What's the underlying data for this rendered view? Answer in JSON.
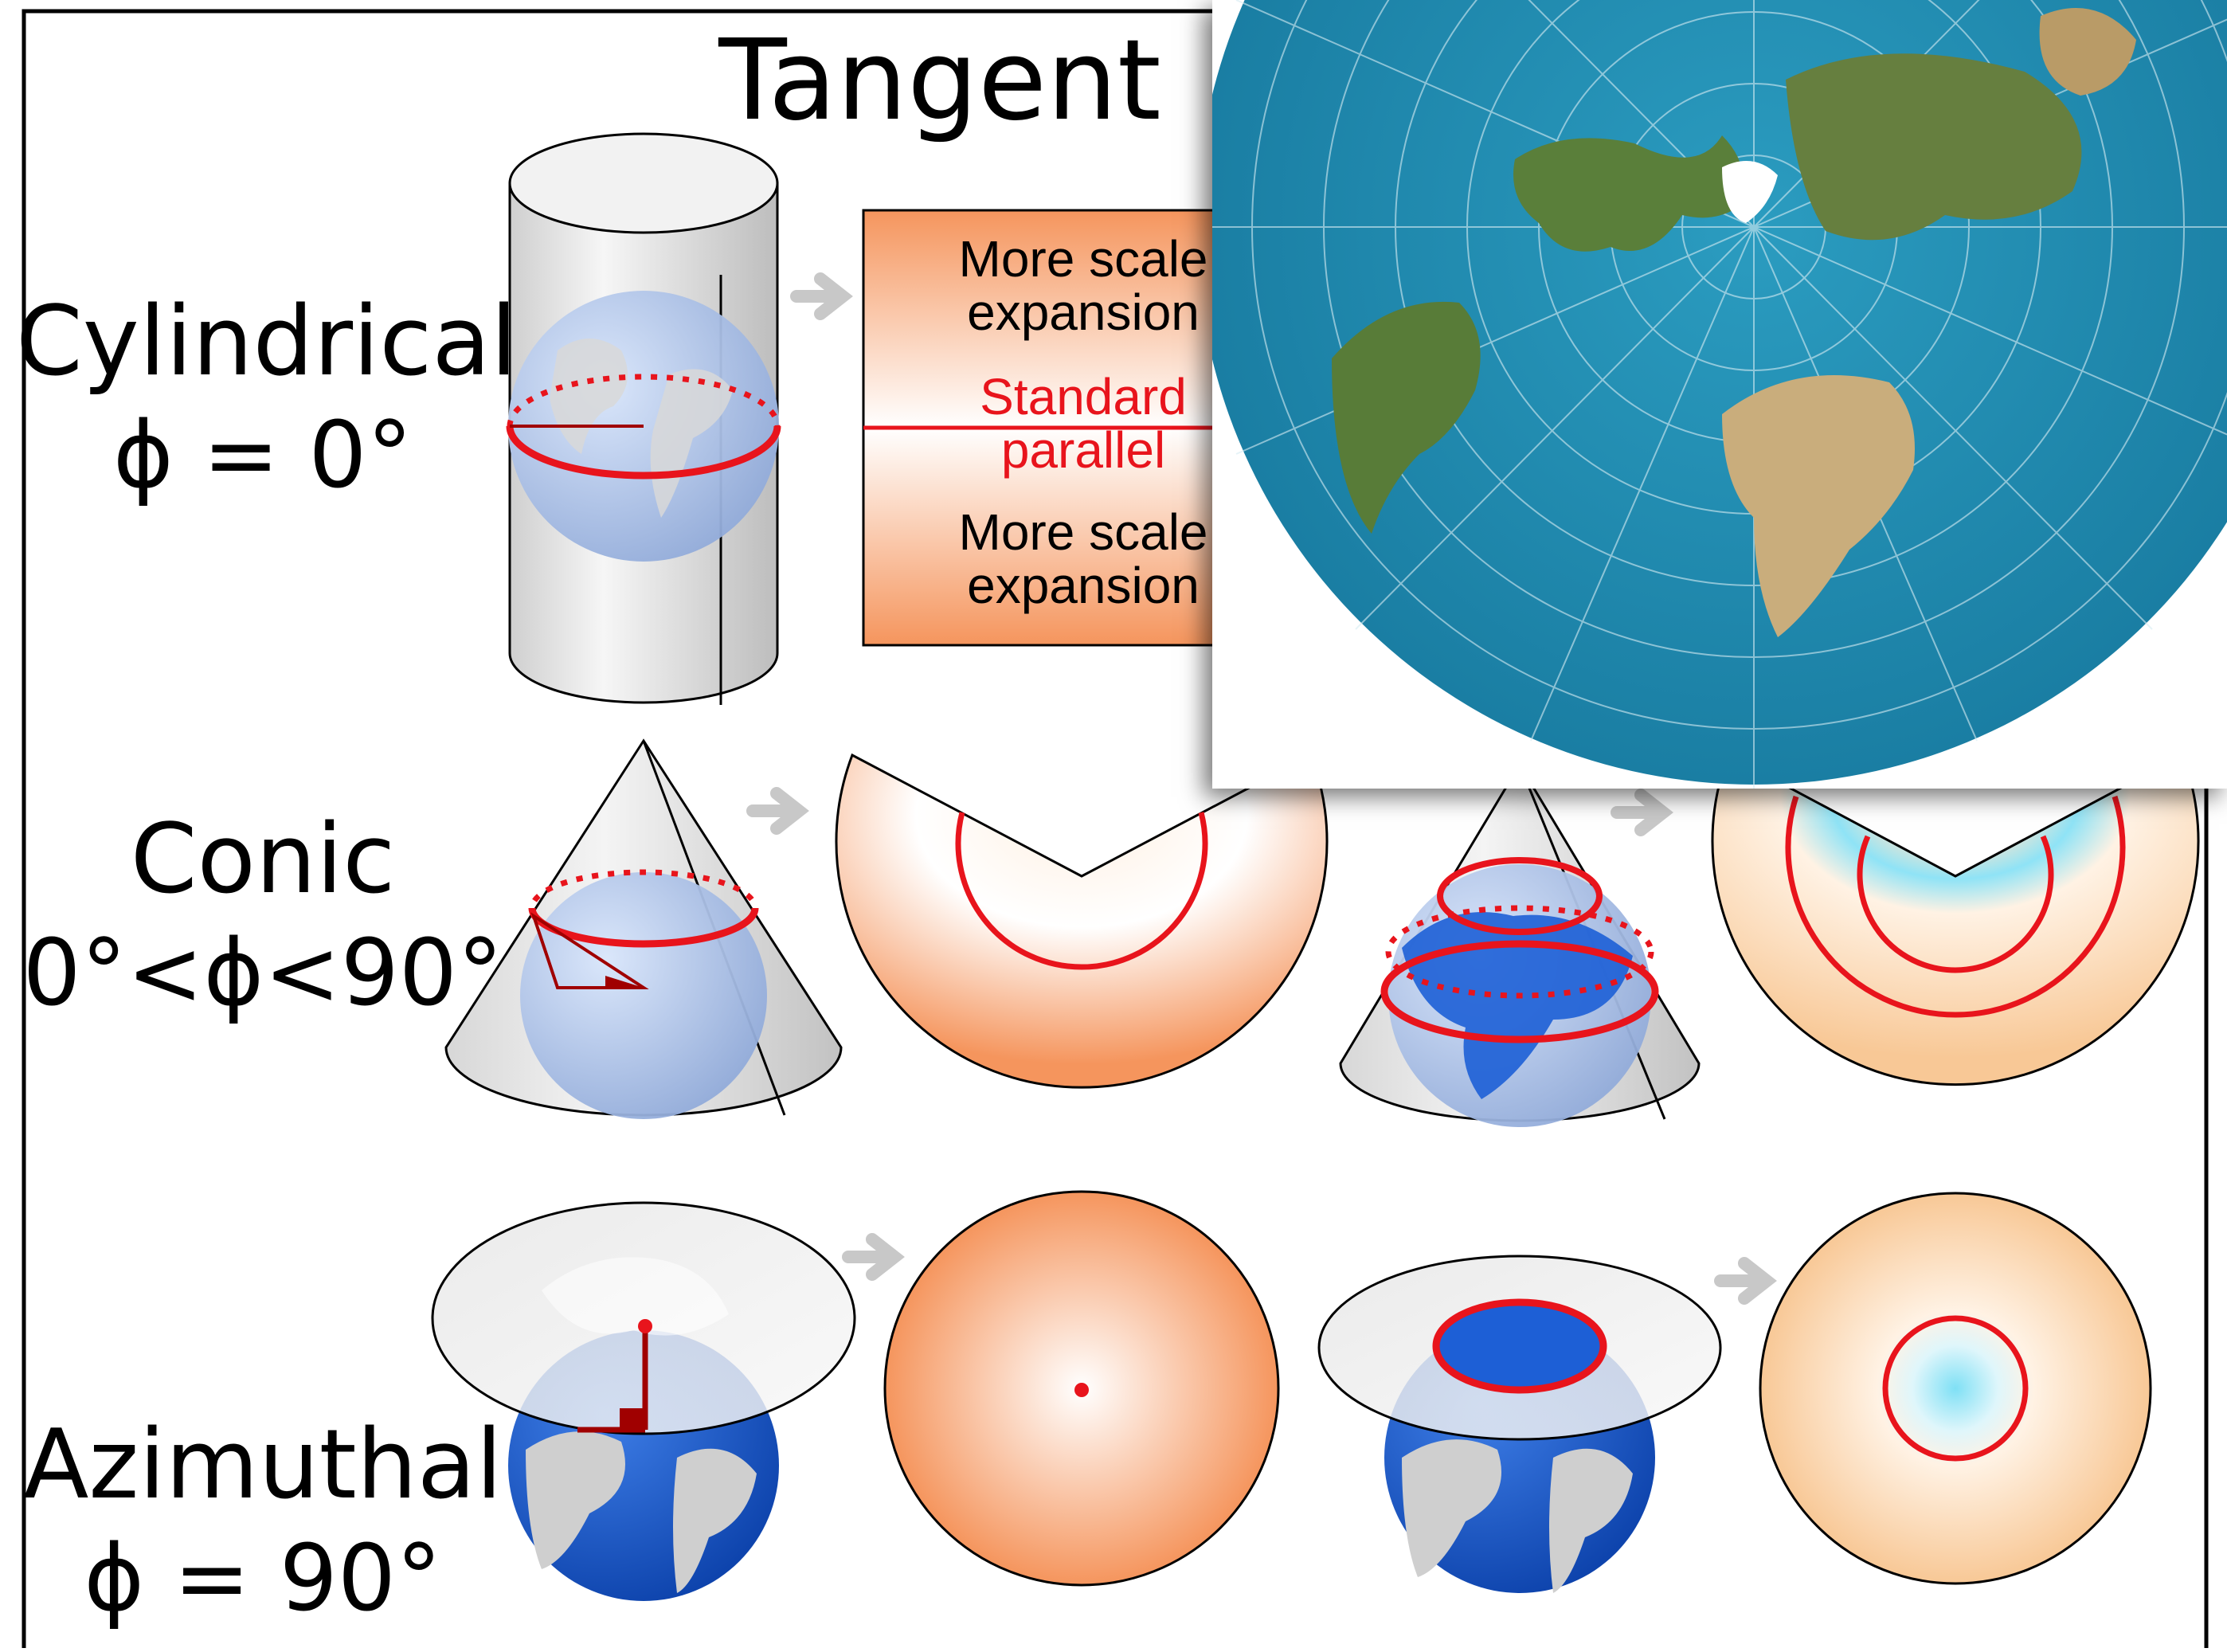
{
  "title": "Tangent",
  "rows": [
    {
      "name": "Cylindrical",
      "angle": "ϕ = 0°"
    },
    {
      "name": "Conic",
      "angle": "0°<ϕ<90°"
    },
    {
      "name": "Azimuthal",
      "angle": "ϕ = 90°"
    }
  ],
  "strip": {
    "top": "More scale\nexpansion",
    "middle": "Standard\nparallel",
    "bottom": "More scale\nexpansion"
  },
  "colors": {
    "orange": "#f5955d",
    "red": "#e8141c",
    "ocean": "#1f8fb3",
    "globe_blue": "#1d5fd6",
    "cyan": "#7fe0f5"
  }
}
